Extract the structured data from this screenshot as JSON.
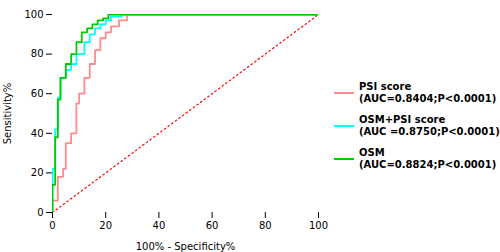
{
  "chart_data": {
    "type": "line",
    "xlabel": "100% - Specificity%",
    "ylabel": "Sensitivity%",
    "xlim": [
      0,
      100
    ],
    "ylim": [
      0,
      100
    ],
    "xticks": [
      0,
      20,
      40,
      60,
      80,
      100
    ],
    "yticks": [
      0,
      20,
      40,
      60,
      80,
      100
    ],
    "legend": "right",
    "series": [
      {
        "color": "#FF0000",
        "line_style": "dotted",
        "x": [
          0,
          100
        ],
        "values": [
          0,
          100
        ]
      },
      {
        "name": "PSI score\n(AUC=0.8404;P<0.0001)",
        "color": "#FF8C8C",
        "x": [
          0,
          0,
          2,
          2,
          4,
          4,
          5,
          5,
          7,
          7,
          9,
          9,
          10,
          10,
          12,
          12,
          14,
          14,
          16,
          16,
          18,
          18,
          20,
          20,
          22,
          22,
          25,
          25,
          28,
          28,
          100
        ],
        "values": [
          0,
          6,
          6,
          18,
          18,
          22,
          22,
          35,
          35,
          40,
          40,
          55,
          55,
          60,
          60,
          68,
          68,
          75,
          75,
          82,
          82,
          88,
          88,
          91,
          91,
          94,
          94,
          97,
          97,
          100,
          100
        ]
      },
      {
        "name": "OSM+PSI score\n(AUC =0.8750;P<0.0001)",
        "color": "#00FFFF",
        "x": [
          0,
          0,
          1,
          1,
          2,
          2,
          3,
          3,
          5,
          5,
          7,
          7,
          9,
          9,
          12,
          12,
          14,
          14,
          16,
          16,
          18,
          18,
          20,
          20,
          22,
          22,
          26,
          26,
          100
        ],
        "values": [
          0,
          22,
          22,
          42,
          42,
          58,
          58,
          68,
          68,
          72,
          72,
          75,
          75,
          80,
          80,
          86,
          86,
          90,
          90,
          93,
          93,
          95,
          95,
          97,
          97,
          99,
          99,
          100,
          100
        ]
      },
      {
        "name": "OSM\n(AUC=0.8824;P<0.0001)",
        "color": "#00CC00",
        "x": [
          0,
          0,
          1,
          1,
          2,
          2,
          3,
          3,
          5,
          5,
          7,
          7,
          9,
          9,
          11,
          11,
          13,
          13,
          15,
          15,
          17,
          17,
          19,
          19,
          21,
          21,
          24,
          24,
          100
        ],
        "values": [
          0,
          14,
          14,
          38,
          38,
          57,
          57,
          68,
          68,
          75,
          75,
          80,
          80,
          86,
          86,
          91,
          91,
          93,
          93,
          95,
          95,
          97,
          97,
          98,
          98,
          100,
          100,
          100,
          100
        ]
      }
    ]
  }
}
